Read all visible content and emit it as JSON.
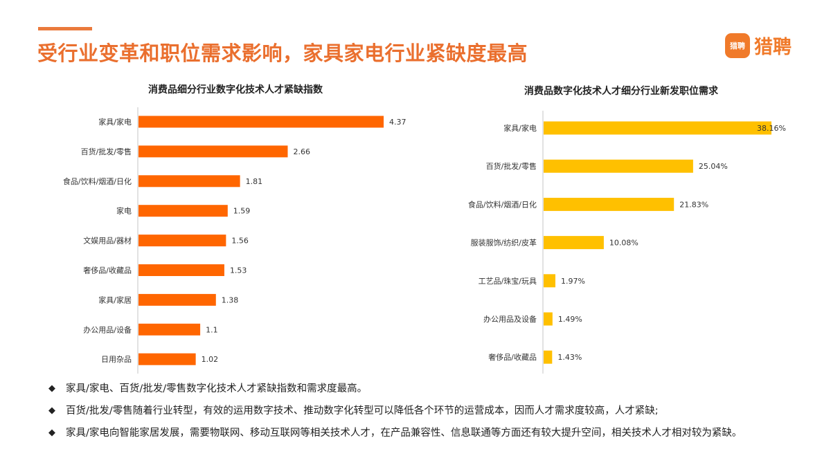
{
  "header": {
    "title": "受行业变革和职位需求影响，家具家电行业紧缺度最高",
    "logo_badge": "猎聘",
    "logo_text": "猎聘",
    "accent_color": "#ea6f2e"
  },
  "chart_data": [
    {
      "type": "bar",
      "orientation": "horizontal",
      "title": "消费品细分行业数字化技术人才紧缺指数",
      "categories": [
        "家具/家电",
        "百货/批发/零售",
        "食品/饮料/烟酒/日化",
        "家电",
        "文娱用品/器材",
        "奢侈品/收藏品",
        "家具/家居",
        "办公用品/设备",
        "日用杂品"
      ],
      "values": [
        4.37,
        2.66,
        1.81,
        1.59,
        1.56,
        1.53,
        1.38,
        1.1,
        1.02
      ],
      "value_labels": [
        "4.37",
        "2.66",
        "1.81",
        "1.59",
        "1.56",
        "1.53",
        "1.38",
        "1.1",
        "1.02"
      ],
      "color": "#ff6600",
      "grid": false
    },
    {
      "type": "bar",
      "orientation": "horizontal",
      "title": "消费品数字化技术人才细分行业新发职位需求",
      "categories": [
        "家具/家电",
        "百货/批发/零售",
        "食品/饮料/烟酒/日化",
        "服装服饰/纺织/皮革",
        "工艺品/珠宝/玩具",
        "办公用品及设备",
        "奢侈品/收藏品"
      ],
      "values": [
        38.16,
        25.04,
        21.83,
        10.08,
        1.97,
        1.49,
        1.43
      ],
      "value_labels": [
        "38.16%",
        "25.04%",
        "21.83%",
        "10.08%",
        "1.97%",
        "1.49%",
        "1.43%"
      ],
      "unit": "%",
      "color": "#ffc000",
      "grid": false
    }
  ],
  "bullets": [
    "家具/家电、百货/批发/零售数字化技术人才紧缺指数和需求度最高。",
    "百货/批发/零售随着行业转型，有效的运用数字技术、推动数字化转型可以降低各个环节的运营成本，因而人才需求度较高，人才紧缺;",
    "家具/家电向智能家居发展，需要物联网、移动互联网等相关技术人才，在产品兼容性、信息联通等方面还有较大提升空间，相关技术人才相对较为紧缺。"
  ],
  "bullet_symbol": "◆"
}
